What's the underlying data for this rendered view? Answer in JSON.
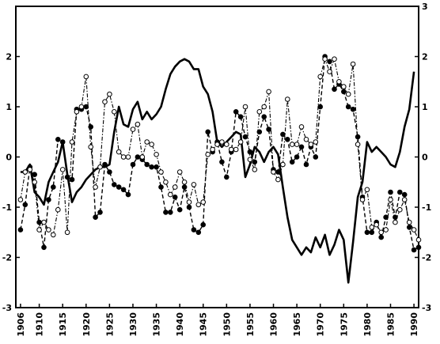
{
  "chart_data": {
    "type": "line",
    "title": "",
    "xlabel": "",
    "ylabel": "",
    "xlim": [
      1905,
      1991
    ],
    "ylim_left": [
      -3,
      3
    ],
    "ylim_right": [
      -3,
      3
    ],
    "x_ticks": [
      1906,
      1910,
      1915,
      1920,
      1925,
      1930,
      1935,
      1940,
      1945,
      1950,
      1955,
      1960,
      1965,
      1970,
      1975,
      1980,
      1985,
      1990
    ],
    "y_ticks_left": [
      -3,
      -2,
      -1,
      0,
      1,
      2
    ],
    "y_ticks_right": [
      -3,
      -2,
      -1,
      0,
      1,
      2,
      3
    ],
    "legend": "none",
    "grid": false,
    "series": [
      {
        "style": "solid-thick",
        "color": "#000000",
        "points": [
          [
            1906,
            -0.3
          ],
          [
            1907,
            -0.3
          ],
          [
            1908,
            -0.15
          ],
          [
            1909,
            -0.7
          ],
          [
            1910,
            -0.8
          ],
          [
            1911,
            -0.95
          ],
          [
            1912,
            -0.5
          ],
          [
            1913,
            -0.3
          ],
          [
            1914,
            -0.1
          ],
          [
            1915,
            0.3
          ],
          [
            1916,
            -0.35
          ],
          [
            1917,
            -0.9
          ],
          [
            1918,
            -0.7
          ],
          [
            1919,
            -0.6
          ],
          [
            1920,
            -0.45
          ],
          [
            1921,
            -0.35
          ],
          [
            1922,
            -0.25
          ],
          [
            1923,
            -0.2
          ],
          [
            1924,
            -0.2
          ],
          [
            1925,
            -0.15
          ],
          [
            1926,
            0.5
          ],
          [
            1927,
            1.0
          ],
          [
            1928,
            0.65
          ],
          [
            1929,
            0.6
          ],
          [
            1930,
            0.95
          ],
          [
            1931,
            1.1
          ],
          [
            1932,
            0.75
          ],
          [
            1933,
            0.9
          ],
          [
            1934,
            0.75
          ],
          [
            1935,
            0.85
          ],
          [
            1936,
            1.0
          ],
          [
            1937,
            1.35
          ],
          [
            1938,
            1.65
          ],
          [
            1939,
            1.8
          ],
          [
            1940,
            1.9
          ],
          [
            1941,
            1.95
          ],
          [
            1942,
            1.9
          ],
          [
            1943,
            1.75
          ],
          [
            1944,
            1.75
          ],
          [
            1945,
            1.4
          ],
          [
            1946,
            1.25
          ],
          [
            1947,
            0.9
          ],
          [
            1948,
            0.3
          ],
          [
            1949,
            0.2
          ],
          [
            1950,
            0.3
          ],
          [
            1951,
            0.4
          ],
          [
            1952,
            0.5
          ],
          [
            1953,
            0.45
          ],
          [
            1954,
            -0.4
          ],
          [
            1955,
            -0.15
          ],
          [
            1956,
            0.2
          ],
          [
            1957,
            0.1
          ],
          [
            1958,
            -0.1
          ],
          [
            1959,
            0.1
          ],
          [
            1960,
            0.2
          ],
          [
            1961,
            0.05
          ],
          [
            1962,
            -0.6
          ],
          [
            1963,
            -1.2
          ],
          [
            1964,
            -1.65
          ],
          [
            1965,
            -1.8
          ],
          [
            1966,
            -1.95
          ],
          [
            1967,
            -1.8
          ],
          [
            1968,
            -1.9
          ],
          [
            1969,
            -1.6
          ],
          [
            1970,
            -1.8
          ],
          [
            1971,
            -1.55
          ],
          [
            1972,
            -1.95
          ],
          [
            1973,
            -1.75
          ],
          [
            1974,
            -1.45
          ],
          [
            1975,
            -1.65
          ],
          [
            1976,
            -2.5
          ],
          [
            1977,
            -1.7
          ],
          [
            1978,
            -0.8
          ],
          [
            1979,
            -0.5
          ],
          [
            1980,
            0.3
          ],
          [
            1981,
            0.1
          ],
          [
            1982,
            0.2
          ],
          [
            1983,
            0.1
          ],
          [
            1984,
            0.0
          ],
          [
            1985,
            -0.15
          ],
          [
            1986,
            -0.2
          ],
          [
            1987,
            0.1
          ],
          [
            1988,
            0.6
          ],
          [
            1989,
            0.95
          ],
          [
            1990,
            1.7
          ]
        ]
      },
      {
        "style": "dashed-filled-markers",
        "color": "#000000",
        "points": [
          [
            1906,
            -1.45
          ],
          [
            1907,
            -0.95
          ],
          [
            1908,
            -0.2
          ],
          [
            1909,
            -0.35
          ],
          [
            1910,
            -1.3
          ],
          [
            1911,
            -1.8
          ],
          [
            1912,
            -0.85
          ],
          [
            1913,
            -0.6
          ],
          [
            1914,
            0.35
          ],
          [
            1915,
            0.3
          ],
          [
            1916,
            -0.4
          ],
          [
            1917,
            -0.45
          ],
          [
            1918,
            0.95
          ],
          [
            1919,
            0.95
          ],
          [
            1920,
            1.0
          ],
          [
            1921,
            0.6
          ],
          [
            1922,
            -1.2
          ],
          [
            1923,
            -1.1
          ],
          [
            1924,
            -0.15
          ],
          [
            1925,
            -0.3
          ],
          [
            1926,
            -0.55
          ],
          [
            1927,
            -0.6
          ],
          [
            1928,
            -0.65
          ],
          [
            1929,
            -0.75
          ],
          [
            1930,
            -0.15
          ],
          [
            1931,
            0.0
          ],
          [
            1932,
            -0.05
          ],
          [
            1933,
            -0.15
          ],
          [
            1934,
            -0.2
          ],
          [
            1935,
            -0.2
          ],
          [
            1936,
            -0.6
          ],
          [
            1937,
            -1.1
          ],
          [
            1938,
            -1.1
          ],
          [
            1939,
            -0.8
          ],
          [
            1940,
            -1.05
          ],
          [
            1941,
            -0.6
          ],
          [
            1942,
            -1.0
          ],
          [
            1943,
            -1.45
          ],
          [
            1944,
            -1.5
          ],
          [
            1945,
            -1.35
          ],
          [
            1946,
            0.5
          ],
          [
            1947,
            0.1
          ],
          [
            1948,
            0.3
          ],
          [
            1949,
            -0.1
          ],
          [
            1950,
            -0.4
          ],
          [
            1951,
            0.1
          ],
          [
            1952,
            0.9
          ],
          [
            1953,
            0.8
          ],
          [
            1954,
            0.4
          ],
          [
            1955,
            0.1
          ],
          [
            1956,
            -0.1
          ],
          [
            1957,
            0.5
          ],
          [
            1958,
            0.8
          ],
          [
            1959,
            0.55
          ],
          [
            1960,
            -0.25
          ],
          [
            1961,
            -0.3
          ],
          [
            1962,
            0.45
          ],
          [
            1963,
            0.35
          ],
          [
            1964,
            -0.1
          ],
          [
            1965,
            0.0
          ],
          [
            1966,
            0.2
          ],
          [
            1967,
            -0.15
          ],
          [
            1968,
            0.2
          ],
          [
            1969,
            0.0
          ],
          [
            1970,
            1.0
          ],
          [
            1971,
            2.0
          ],
          [
            1972,
            1.9
          ],
          [
            1973,
            1.35
          ],
          [
            1974,
            1.45
          ],
          [
            1975,
            1.3
          ],
          [
            1976,
            1.0
          ],
          [
            1977,
            0.95
          ],
          [
            1978,
            0.4
          ],
          [
            1979,
            -0.8
          ],
          [
            1980,
            -1.5
          ],
          [
            1981,
            -1.5
          ],
          [
            1982,
            -1.3
          ],
          [
            1983,
            -1.6
          ],
          [
            1984,
            -1.2
          ],
          [
            1985,
            -0.7
          ],
          [
            1986,
            -1.2
          ],
          [
            1987,
            -0.7
          ],
          [
            1988,
            -0.75
          ],
          [
            1989,
            -1.4
          ],
          [
            1990,
            -1.85
          ],
          [
            1991,
            -1.8
          ]
        ]
      },
      {
        "style": "dashdot-open-markers",
        "color": "#000000",
        "points": [
          [
            1906,
            -0.85
          ],
          [
            1907,
            -0.3
          ],
          [
            1908,
            -0.25
          ],
          [
            1909,
            -0.5
          ],
          [
            1910,
            -1.45
          ],
          [
            1911,
            -1.3
          ],
          [
            1912,
            -1.45
          ],
          [
            1913,
            -1.55
          ],
          [
            1914,
            -1.05
          ],
          [
            1915,
            -0.25
          ],
          [
            1916,
            -1.5
          ],
          [
            1917,
            0.3
          ],
          [
            1918,
            0.9
          ],
          [
            1919,
            1.0
          ],
          [
            1920,
            1.6
          ],
          [
            1921,
            0.2
          ],
          [
            1922,
            -0.6
          ],
          [
            1923,
            -0.2
          ],
          [
            1924,
            1.1
          ],
          [
            1925,
            1.25
          ],
          [
            1926,
            0.9
          ],
          [
            1927,
            0.1
          ],
          [
            1928,
            0.0
          ],
          [
            1929,
            0.0
          ],
          [
            1930,
            0.55
          ],
          [
            1931,
            0.65
          ],
          [
            1932,
            0.0
          ],
          [
            1933,
            0.3
          ],
          [
            1934,
            0.25
          ],
          [
            1935,
            0.05
          ],
          [
            1936,
            -0.3
          ],
          [
            1937,
            -0.5
          ],
          [
            1938,
            -0.75
          ],
          [
            1939,
            -0.6
          ],
          [
            1940,
            -0.3
          ],
          [
            1941,
            -0.5
          ],
          [
            1942,
            -0.9
          ],
          [
            1943,
            -0.55
          ],
          [
            1944,
            -0.95
          ],
          [
            1945,
            -0.9
          ],
          [
            1946,
            0.05
          ],
          [
            1947,
            0.15
          ],
          [
            1948,
            0.25
          ],
          [
            1949,
            0.3
          ],
          [
            1950,
            0.25
          ],
          [
            1951,
            0.15
          ],
          [
            1952,
            0.15
          ],
          [
            1953,
            0.3
          ],
          [
            1954,
            1.0
          ],
          [
            1955,
            -0.05
          ],
          [
            1956,
            -0.25
          ],
          [
            1957,
            0.9
          ],
          [
            1958,
            1.0
          ],
          [
            1959,
            1.3
          ],
          [
            1960,
            -0.3
          ],
          [
            1961,
            -0.45
          ],
          [
            1962,
            -0.15
          ],
          [
            1963,
            1.15
          ],
          [
            1964,
            0.25
          ],
          [
            1965,
            0.25
          ],
          [
            1966,
            0.6
          ],
          [
            1967,
            0.35
          ],
          [
            1968,
            0.25
          ],
          [
            1969,
            0.3
          ],
          [
            1970,
            1.6
          ],
          [
            1971,
            1.95
          ],
          [
            1972,
            1.7
          ],
          [
            1973,
            1.95
          ],
          [
            1974,
            1.5
          ],
          [
            1975,
            1.4
          ],
          [
            1976,
            1.25
          ],
          [
            1977,
            1.85
          ],
          [
            1978,
            0.25
          ],
          [
            1979,
            -0.85
          ],
          [
            1980,
            -0.65
          ],
          [
            1981,
            -1.4
          ],
          [
            1982,
            -1.35
          ],
          [
            1983,
            -1.5
          ],
          [
            1984,
            -1.45
          ],
          [
            1985,
            -0.85
          ],
          [
            1986,
            -1.3
          ],
          [
            1987,
            -1.05
          ],
          [
            1988,
            -0.85
          ],
          [
            1989,
            -1.3
          ],
          [
            1990,
            -1.45
          ],
          [
            1991,
            -1.65
          ]
        ]
      }
    ]
  }
}
